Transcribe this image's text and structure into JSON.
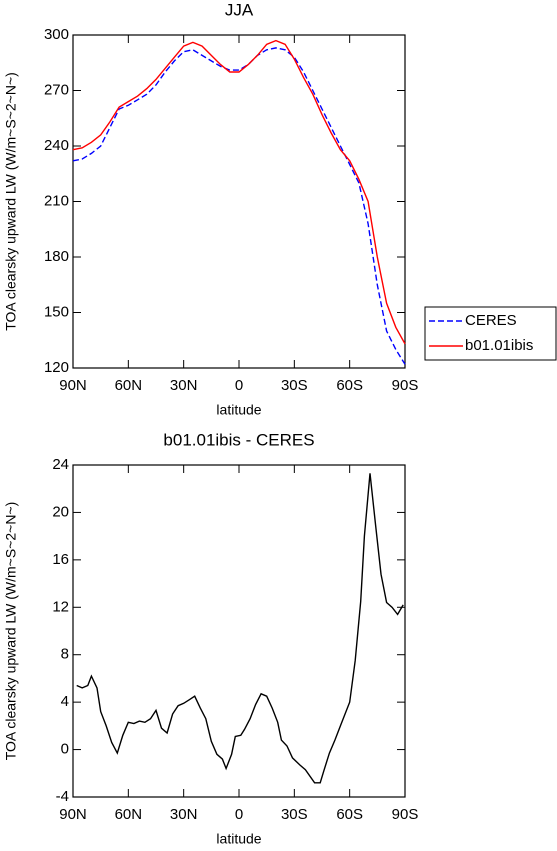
{
  "chart_data": [
    {
      "type": "line",
      "title": "JJA",
      "x_label": "latitude",
      "y_label": "TOA clearsky upward LW (W/m~S~2~N~)",
      "x": [
        90,
        85,
        80,
        75,
        70,
        65,
        60,
        55,
        50,
        45,
        40,
        35,
        30,
        25,
        20,
        15,
        10,
        5,
        0,
        -5,
        -10,
        -15,
        -20,
        -25,
        -30,
        -35,
        -40,
        -45,
        -50,
        -55,
        -60,
        -65,
        -70,
        -75,
        -80,
        -85,
        -90
      ],
      "series": [
        {
          "name": "CERES",
          "color": "#0000ff",
          "dash": "dashed",
          "values": [
            232,
            233,
            236,
            240,
            250,
            260,
            262,
            265,
            268,
            273,
            280,
            286,
            291,
            292,
            289,
            286,
            283,
            281,
            281,
            284,
            289,
            292,
            293,
            292,
            288,
            280,
            270,
            260,
            250,
            240,
            230,
            220,
            198,
            165,
            140,
            130,
            122
          ]
        },
        {
          "name": "b01.01ibis",
          "color": "#ff0000",
          "dash": "solid",
          "values": [
            238,
            239,
            242,
            246,
            253,
            261,
            264,
            267,
            271,
            276,
            282,
            288,
            294,
            296,
            294,
            289,
            284,
            280,
            280,
            284,
            289,
            295,
            297,
            295,
            287,
            277,
            268,
            257,
            247,
            238,
            232,
            222,
            210,
            180,
            155,
            142,
            133
          ]
        }
      ],
      "xlim": [
        90,
        -90
      ],
      "xticks": [
        {
          "value": 90,
          "label": "90N"
        },
        {
          "value": 60,
          "label": "60N"
        },
        {
          "value": 30,
          "label": "30N"
        },
        0,
        {
          "value": -30,
          "label": "30S"
        },
        {
          "value": -60,
          "label": "60S"
        },
        {
          "value": -90,
          "label": "90S"
        }
      ],
      "ylim": [
        120,
        300
      ],
      "yticks": [
        120,
        150,
        180,
        210,
        240,
        270,
        300
      ],
      "legend": "right"
    },
    {
      "type": "line",
      "title": "b01.01ibis - CERES",
      "x_label": "latitude",
      "y_label": "TOA clearsky upward LW (W/m~S~2~N~)",
      "x": [
        88,
        85,
        82,
        80,
        77,
        75,
        72,
        69,
        66,
        63,
        60,
        57,
        54,
        51,
        48,
        45,
        42,
        39,
        36,
        33,
        30,
        27,
        24,
        21,
        18,
        15,
        12,
        9,
        7,
        4,
        2,
        -1,
        -3,
        -6,
        -9,
        -12,
        -15,
        -18,
        -21,
        -23,
        -26,
        -29,
        -33,
        -36,
        -41,
        -44,
        -46,
        -49,
        -52,
        -55,
        -60,
        -63,
        -66,
        -68,
        -71,
        -74,
        -77,
        -80,
        -83,
        -86,
        -89
      ],
      "series": [
        {
          "name": "b01.01ibis - CERES",
          "color": "#000000",
          "dash": "solid",
          "values": [
            5.4,
            5.2,
            5.4,
            6.2,
            5.2,
            3.2,
            2.0,
            0.6,
            -0.3,
            1.2,
            2.3,
            2.2,
            2.4,
            2.3,
            2.6,
            3.3,
            1.8,
            1.4,
            3.0,
            3.7,
            3.9,
            4.2,
            4.5,
            3.5,
            2.6,
            0.7,
            -0.4,
            -0.8,
            -1.6,
            -0.4,
            1.1,
            1.2,
            1.7,
            2.6,
            3.8,
            4.7,
            4.5,
            3.5,
            2.3,
            0.8,
            0.3,
            -0.7,
            -1.3,
            -1.7,
            -2.8,
            -2.8,
            -1.8,
            -0.3,
            0.8,
            2.0,
            4.0,
            7.5,
            12.5,
            18,
            23.3,
            19,
            14.8,
            12.4,
            12.0,
            11.4,
            12.2
          ]
        }
      ],
      "xlim": [
        90,
        -90
      ],
      "xticks": [
        {
          "value": 90,
          "label": "90N"
        },
        {
          "value": 60,
          "label": "60N"
        },
        {
          "value": 30,
          "label": "30N"
        },
        0,
        {
          "value": -30,
          "label": "30S"
        },
        {
          "value": -60,
          "label": "60S"
        },
        {
          "value": -90,
          "label": "90S"
        }
      ],
      "ylim": [
        -4,
        24
      ],
      "yticks": [
        -4,
        0,
        4,
        8,
        12,
        16,
        20,
        24
      ]
    }
  ]
}
